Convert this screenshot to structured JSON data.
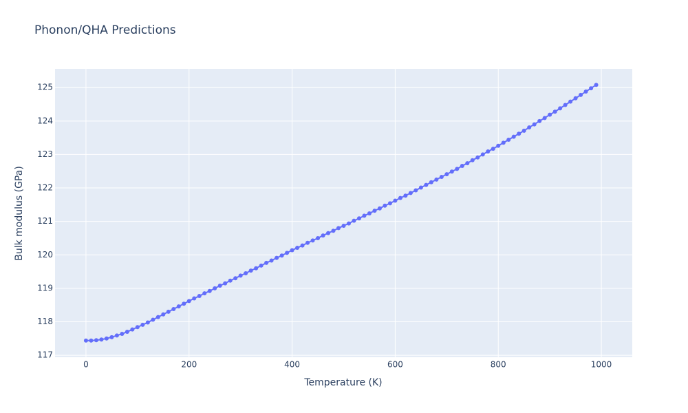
{
  "chart_data": {
    "type": "line",
    "title": "Phonon/QHA Predictions",
    "x_label": "Temperature (K)",
    "y_label": "Bulk modulus (GPa)",
    "x": [
      0,
      10,
      20,
      30,
      40,
      50,
      60,
      70,
      80,
      90,
      100,
      110,
      120,
      130,
      140,
      150,
      160,
      170,
      180,
      190,
      200,
      210,
      220,
      230,
      240,
      250,
      260,
      270,
      280,
      290,
      300,
      310,
      320,
      330,
      340,
      350,
      360,
      370,
      380,
      390,
      400,
      410,
      420,
      430,
      440,
      450,
      460,
      470,
      480,
      490,
      500,
      510,
      520,
      530,
      540,
      550,
      560,
      570,
      580,
      590,
      600,
      610,
      620,
      630,
      640,
      650,
      660,
      670,
      680,
      690,
      700,
      710,
      720,
      730,
      740,
      750,
      760,
      770,
      780,
      790,
      800,
      810,
      820,
      830,
      840,
      850,
      860,
      870,
      880,
      890,
      900,
      910,
      920,
      930,
      940,
      950,
      960,
      970,
      980,
      990
    ],
    "series": [
      {
        "color": "#636efa",
        "values": [
          117.44,
          117.44,
          117.45,
          117.47,
          117.5,
          117.54,
          117.59,
          117.64,
          117.7,
          117.77,
          117.84,
          117.91,
          117.98,
          118.06,
          118.14,
          118.22,
          118.3,
          118.38,
          118.46,
          118.54,
          118.62,
          118.7,
          118.77,
          118.85,
          118.92,
          119.0,
          119.08,
          119.15,
          119.23,
          119.3,
          119.38,
          119.45,
          119.53,
          119.6,
          119.68,
          119.76,
          119.83,
          119.91,
          119.98,
          120.06,
          120.14,
          120.21,
          120.28,
          120.36,
          120.43,
          120.5,
          120.58,
          120.65,
          120.72,
          120.8,
          120.87,
          120.94,
          121.02,
          121.09,
          121.17,
          121.24,
          121.32,
          121.39,
          121.47,
          121.54,
          121.62,
          121.7,
          121.77,
          121.85,
          121.93,
          122.01,
          122.09,
          122.17,
          122.25,
          122.33,
          122.41,
          122.49,
          122.57,
          122.66,
          122.74,
          122.83,
          122.91,
          123.0,
          123.09,
          123.17,
          123.26,
          123.35,
          123.44,
          123.53,
          123.62,
          123.71,
          123.81,
          123.9,
          124.0,
          124.09,
          124.19,
          124.28,
          124.38,
          124.48,
          124.58,
          124.68,
          124.78,
          124.88,
          124.98,
          125.08
        ]
      }
    ],
    "xlim": [
      -60,
      1060
    ],
    "xticks": [
      0,
      200,
      400,
      600,
      800,
      1000
    ],
    "ylim": [
      116.94,
      125.56
    ],
    "yticks": [
      117,
      118,
      119,
      120,
      121,
      122,
      123,
      124,
      125
    ],
    "grid": true
  }
}
